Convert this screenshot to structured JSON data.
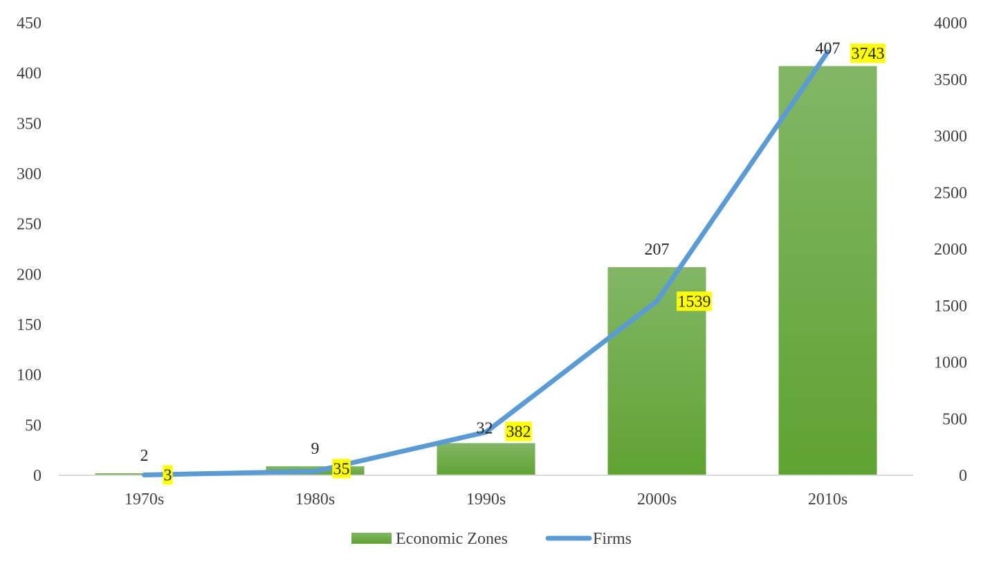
{
  "chart_data": {
    "type": "bar",
    "categories": [
      "1970s",
      "1980s",
      "1990s",
      "2000s",
      "2010s"
    ],
    "series": [
      {
        "name": "Economic Zones",
        "type": "bar",
        "axis": "left",
        "values": [
          2,
          9,
          32,
          207,
          407
        ],
        "color": "#6aaa3a"
      },
      {
        "name": "Firms",
        "type": "line",
        "axis": "right",
        "values": [
          3,
          35,
          382,
          1539,
          3743
        ],
        "color": "#5b9bd5"
      }
    ],
    "data_labels": {
      "bars": [
        "2",
        "9",
        "32",
        "207",
        "407"
      ],
      "line": [
        "3",
        "35",
        "382",
        "1539",
        "3743"
      ],
      "line_highlight_color": "#ffff00"
    },
    "y_left": {
      "min": 0,
      "max": 450,
      "step": 50,
      "ticks": [
        "0",
        "50",
        "100",
        "150",
        "200",
        "250",
        "300",
        "350",
        "400",
        "450"
      ]
    },
    "y_right": {
      "min": 0,
      "max": 4000,
      "step": 500,
      "ticks": [
        "0",
        "500",
        "1000",
        "1500",
        "2000",
        "2500",
        "3000",
        "3500",
        "4000"
      ]
    },
    "grid": false,
    "legend": {
      "position": "bottom",
      "items": [
        "Economic Zones",
        "Firms"
      ]
    },
    "title": "",
    "xlabel": "",
    "ylabel": ""
  }
}
